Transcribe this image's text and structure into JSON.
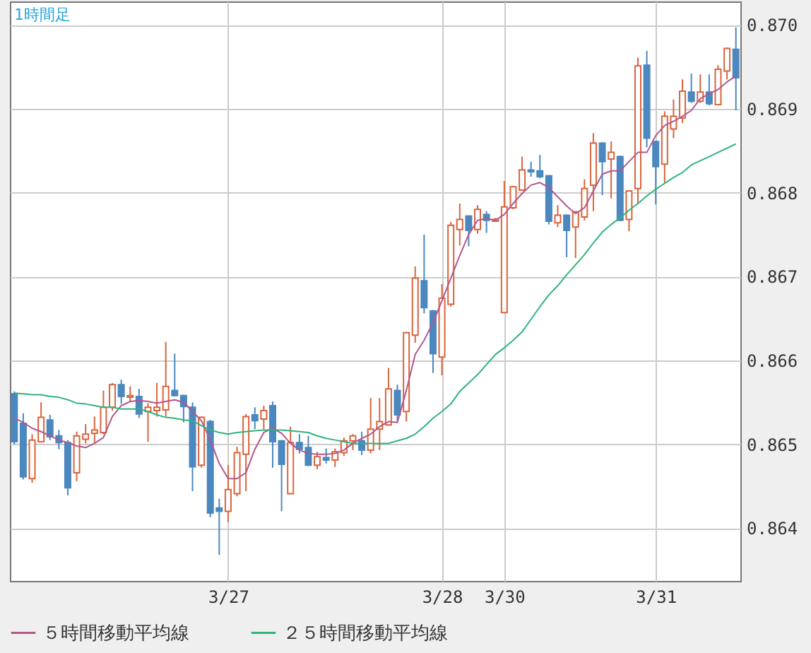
{
  "chart_data": {
    "type": "candlestick",
    "title": "1時間足",
    "categories": [
      null,
      null,
      null,
      null,
      null,
      null,
      null,
      null,
      null,
      null,
      null,
      null,
      null,
      null,
      null,
      null,
      null,
      null,
      null,
      null,
      null,
      null,
      null,
      null,
      "3/27",
      null,
      null,
      null,
      null,
      null,
      null,
      null,
      null,
      null,
      null,
      null,
      null,
      null,
      null,
      null,
      null,
      null,
      null,
      null,
      null,
      null,
      null,
      null,
      "3/28",
      null,
      null,
      null,
      null,
      null,
      null,
      "3/30",
      null,
      null,
      null,
      null,
      null,
      null,
      null,
      null,
      null,
      null,
      null,
      null,
      null,
      null,
      null,
      null,
      "3/31",
      null,
      null,
      null,
      null,
      null,
      null,
      null,
      null,
      null
    ],
    "ohlc": [
      [
        0.8656,
        0.86563,
        0.865,
        0.86503
      ],
      [
        0.86525,
        0.86537,
        0.86458,
        0.86461
      ],
      [
        0.86459,
        0.86512,
        0.86454,
        0.86505
      ],
      [
        0.86503,
        0.8655,
        0.86502,
        0.86532
      ],
      [
        0.86529,
        0.86535,
        0.86505,
        0.86509
      ],
      [
        0.8651,
        0.86517,
        0.86494,
        0.86502
      ],
      [
        0.86502,
        0.86505,
        0.86439,
        0.86448
      ],
      [
        0.86466,
        0.86515,
        0.86456,
        0.8651
      ],
      [
        0.86506,
        0.86524,
        0.86501,
        0.86512
      ],
      [
        0.86513,
        0.86533,
        0.86502,
        0.86517
      ],
      [
        0.86514,
        0.86564,
        0.86512,
        0.86544
      ],
      [
        0.86544,
        0.86573,
        0.8654,
        0.86571
      ],
      [
        0.86571,
        0.86577,
        0.86548,
        0.86557
      ],
      [
        0.86556,
        0.86569,
        0.8655,
        0.86558
      ],
      [
        0.86557,
        0.86566,
        0.86531,
        0.86536
      ],
      [
        0.86539,
        0.86549,
        0.86503,
        0.86544
      ],
      [
        0.8654,
        0.86573,
        0.86533,
        0.86544
      ],
      [
        0.86541,
        0.86622,
        0.86533,
        0.86569
      ],
      [
        0.86564,
        0.86608,
        0.86557,
        0.86558
      ],
      [
        0.86558,
        0.86559,
        0.86526,
        0.86545
      ],
      [
        0.86544,
        0.8655,
        0.86444,
        0.86473
      ],
      [
        0.86475,
        0.86533,
        0.86472,
        0.86532
      ],
      [
        0.86527,
        0.86529,
        0.86413,
        0.86418
      ],
      [
        0.86424,
        0.86435,
        0.86368,
        0.8642
      ],
      [
        0.8642,
        0.86475,
        0.86407,
        0.86446
      ],
      [
        0.86441,
        0.86497,
        0.86438,
        0.8649
      ],
      [
        0.86488,
        0.86536,
        0.86444,
        0.86533
      ],
      [
        0.86535,
        0.86544,
        0.86518,
        0.86528
      ],
      [
        0.8653,
        0.86546,
        0.86518,
        0.8654
      ],
      [
        0.86546,
        0.86551,
        0.86472,
        0.86503
      ],
      [
        0.86504,
        0.86505,
        0.8642,
        0.86476
      ],
      [
        0.86441,
        0.86521,
        0.8644,
        0.86502
      ],
      [
        0.86502,
        0.86512,
        0.86489,
        0.86494
      ],
      [
        0.86496,
        0.8651,
        0.86474,
        0.86475
      ],
      [
        0.86475,
        0.86491,
        0.8647,
        0.86485
      ],
      [
        0.86484,
        0.86495,
        0.86477,
        0.86481
      ],
      [
        0.86481,
        0.86495,
        0.86473,
        0.86491
      ],
      [
        0.8649,
        0.86508,
        0.86486,
        0.86504
      ],
      [
        0.86504,
        0.86512,
        0.86493,
        0.8651
      ],
      [
        0.86504,
        0.86515,
        0.86487,
        0.86493
      ],
      [
        0.86493,
        0.86555,
        0.86489,
        0.86518
      ],
      [
        0.86518,
        0.86555,
        0.86493,
        0.86527
      ],
      [
        0.86523,
        0.86591,
        0.86522,
        0.86566
      ],
      [
        0.86564,
        0.86571,
        0.86527,
        0.86535
      ],
      [
        0.86539,
        0.86634,
        0.86527,
        0.86633
      ],
      [
        0.8663,
        0.86712,
        0.86621,
        0.86698
      ],
      [
        0.86695,
        0.8675,
        0.86656,
        0.86663
      ],
      [
        0.86659,
        0.8666,
        0.86585,
        0.86608
      ],
      [
        0.86604,
        0.86691,
        0.86582,
        0.86674
      ],
      [
        0.86667,
        0.86765,
        0.86664,
        0.86761
      ],
      [
        0.86756,
        0.86787,
        0.86737,
        0.86768
      ],
      [
        0.86772,
        0.86773,
        0.86736,
        0.86755
      ],
      [
        0.86756,
        0.86785,
        0.86751,
        0.8678
      ],
      [
        0.86774,
        0.86778,
        0.86752,
        0.86767
      ],
      [
        0.86766,
        0.8677,
        0.86765,
        0.86768
      ],
      [
        0.86657,
        0.86814,
        0.86656,
        0.86783
      ],
      [
        0.86782,
        0.86808,
        0.8678,
        0.86807
      ],
      [
        0.86803,
        0.86843,
        0.86802,
        0.86827
      ],
      [
        0.86827,
        0.86837,
        0.86819,
        0.86825
      ],
      [
        0.86826,
        0.86845,
        0.86817,
        0.86819
      ],
      [
        0.8682,
        0.86821,
        0.86762,
        0.86766
      ],
      [
        0.86764,
        0.86785,
        0.86759,
        0.86773
      ],
      [
        0.86773,
        0.86774,
        0.86723,
        0.86755
      ],
      [
        0.86759,
        0.86778,
        0.86722,
        0.86777
      ],
      [
        0.86771,
        0.86816,
        0.86767,
        0.86805
      ],
      [
        0.86809,
        0.86871,
        0.86778,
        0.86859
      ],
      [
        0.86859,
        0.8686,
        0.86797,
        0.86837
      ],
      [
        0.8684,
        0.86861,
        0.86793,
        0.86848
      ],
      [
        0.86843,
        0.86844,
        0.86766,
        0.86767
      ],
      [
        0.86768,
        0.86803,
        0.86754,
        0.86802
      ],
      [
        0.86805,
        0.86961,
        0.86786,
        0.86951
      ],
      [
        0.86952,
        0.86969,
        0.86854,
        0.86865
      ],
      [
        0.86861,
        0.86862,
        0.86786,
        0.86831
      ],
      [
        0.86834,
        0.86897,
        0.86811,
        0.86891
      ],
      [
        0.86876,
        0.86911,
        0.86865,
        0.86891
      ],
      [
        0.86889,
        0.86935,
        0.86883,
        0.86921
      ],
      [
        0.8692,
        0.86942,
        0.86907,
        0.86909
      ],
      [
        0.86909,
        0.86941,
        0.86907,
        0.8692
      ],
      [
        0.8692,
        0.86941,
        0.86904,
        0.86906
      ],
      [
        0.86905,
        0.86952,
        0.86904,
        0.86947
      ],
      [
        0.86945,
        0.86973,
        0.86935,
        0.86972
      ],
      [
        0.86971,
        0.86997,
        0.86898,
        0.86937
      ]
    ],
    "colors": [
      "#4a88bf",
      "#4a88bf",
      "#d9643c",
      "#d9643c",
      "#4a88bf",
      "#4a88bf",
      "#4a88bf",
      "#d9643c",
      "#d9643c",
      "#d9643c",
      "#d9643c",
      "#d9643c",
      "#4a88bf",
      "#d9643c",
      "#4a88bf",
      "#d9643c",
      "#d9643c",
      "#d9643c",
      "#4a88bf",
      "#4a88bf",
      "#4a88bf",
      "#d9643c",
      "#4a88bf",
      "#4a88bf",
      "#d9643c",
      "#d9643c",
      "#d9643c",
      "#4a88bf",
      "#d9643c",
      "#4a88bf",
      "#4a88bf",
      "#d9643c",
      "#4a88bf",
      "#4a88bf",
      "#d9643c",
      "#4a88bf",
      "#d9643c",
      "#d9643c",
      "#d9643c",
      "#4a88bf",
      "#d9643c",
      "#d9643c",
      "#d9643c",
      "#4a88bf",
      "#d9643c",
      "#d9643c",
      "#4a88bf",
      "#4a88bf",
      "#d9643c",
      "#d9643c",
      "#d9643c",
      "#4a88bf",
      "#d9643c",
      "#4a88bf",
      "#d9643c",
      "#d9643c",
      "#d9643c",
      "#d9643c",
      "#4a88bf",
      "#4a88bf",
      "#4a88bf",
      "#d9643c",
      "#4a88bf",
      "#d9643c",
      "#d9643c",
      "#d9643c",
      "#4a88bf",
      "#d9643c",
      "#4a88bf",
      "#d9643c",
      "#d9643c",
      "#4a88bf",
      "#4a88bf",
      "#d9643c",
      "#d9643c",
      "#d9643c",
      "#4a88bf",
      "#d9643c",
      "#4a88bf",
      "#d9643c",
      "#d9643c",
      "#4a88bf"
    ],
    "series": [
      {
        "type": "line",
        "name": "５時間移動平均線",
        "color": "#b5568f",
        "values": [
          0.86531,
          0.86526,
          0.86519,
          0.86515,
          0.8651,
          0.86505,
          0.86502,
          0.86498,
          0.86496,
          0.86501,
          0.86508,
          0.86533,
          0.86546,
          0.86551,
          0.86552,
          0.86551,
          0.86549,
          0.86551,
          0.86553,
          0.8655,
          0.86539,
          0.86528,
          0.86505,
          0.86477,
          0.86459,
          0.86459,
          0.86466,
          0.86494,
          0.86514,
          0.86519,
          0.86513,
          0.86501,
          0.86493,
          0.86489,
          0.86488,
          0.86488,
          0.86489,
          0.86493,
          0.86501,
          0.86507,
          0.86512,
          0.86521,
          0.86527,
          0.86526,
          0.86564,
          0.86607,
          0.86624,
          0.86645,
          0.86671,
          0.86698,
          0.86725,
          0.8675,
          0.86767,
          0.86769,
          0.86767,
          0.86774,
          0.86787,
          0.86799,
          0.86809,
          0.86812,
          0.86806,
          0.86795,
          0.86784,
          0.86775,
          0.86782,
          0.86802,
          0.86822,
          0.86826,
          0.86826,
          0.86837,
          0.86848,
          0.86848,
          0.86868,
          0.8688,
          0.86885,
          0.86891,
          0.86898,
          0.86912,
          0.86918,
          0.86923,
          0.86932,
          0.86939
        ]
      },
      {
        "type": "line",
        "name": "２５時間移動平均線",
        "color": "#2fb47c",
        "values": [
          0.86561,
          0.8656,
          0.86559,
          0.86559,
          0.86557,
          0.86556,
          0.86553,
          0.86549,
          0.86548,
          0.86546,
          0.86544,
          0.86544,
          0.86542,
          0.86542,
          0.86542,
          0.86539,
          0.86535,
          0.86532,
          0.86531,
          0.86529,
          0.86528,
          0.86522,
          0.86517,
          0.86514,
          0.86512,
          0.86514,
          0.86515,
          0.86516,
          0.86517,
          0.86517,
          0.86517,
          0.86516,
          0.86515,
          0.86514,
          0.8651,
          0.86507,
          0.86505,
          0.86503,
          0.86501,
          0.86501,
          0.86501,
          0.86501,
          0.86501,
          0.86504,
          0.86507,
          0.86512,
          0.86521,
          0.86531,
          0.86539,
          0.86548,
          0.86563,
          0.86573,
          0.86583,
          0.86595,
          0.86607,
          0.86615,
          0.86624,
          0.86634,
          0.86649,
          0.86664,
          0.86678,
          0.86689,
          0.86702,
          0.86714,
          0.86726,
          0.8674,
          0.86753,
          0.86762,
          0.8677,
          0.86779,
          0.86787,
          0.86796,
          0.86804,
          0.86811,
          0.86818,
          0.86824,
          0.86833,
          0.86838,
          0.86843,
          0.86848,
          0.86853,
          0.86858
        ]
      }
    ],
    "ylim": [
      0.86337,
      0.87028
    ],
    "yticks": [
      {
        "value": 0.864,
        "label": "0.864"
      },
      {
        "value": 0.865,
        "label": "0.865"
      },
      {
        "value": 0.866,
        "label": "0.866"
      },
      {
        "value": 0.867,
        "label": "0.867"
      },
      {
        "value": 0.868,
        "label": "0.868"
      },
      {
        "value": 0.869,
        "label": "0.869"
      },
      {
        "value": 0.87,
        "label": "0.870"
      }
    ],
    "grid": true,
    "legend": "bottom"
  }
}
